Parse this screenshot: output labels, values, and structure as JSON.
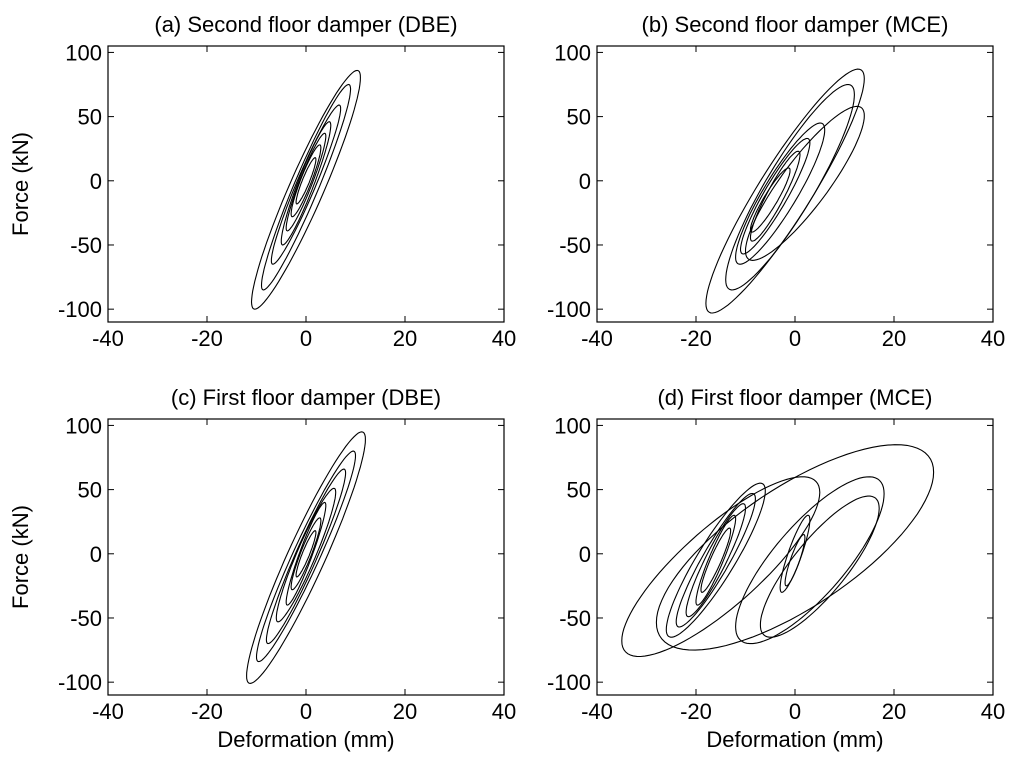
{
  "chart_data": [
    {
      "type": "line",
      "title": "(a) Second floor damper (DBE)",
      "xlabel": "",
      "ylabel": "Force (kN)",
      "xlim": [
        -40,
        40
      ],
      "ylim": [
        -110,
        105
      ],
      "xticks": [
        "-40",
        "-20",
        "0",
        "20",
        "40"
      ],
      "yticks": [
        "100",
        "50",
        "0",
        "-50",
        "-100"
      ],
      "grid": false,
      "series": [
        {
          "loops": [
            {
              "center": [
                0,
                -7
              ],
              "amp": [
                11,
                93
              ],
              "lag": 0.35
            },
            {
              "center": [
                0,
                -5
              ],
              "amp": [
                9,
                80
              ],
              "lag": 0.3
            },
            {
              "center": [
                0,
                -3
              ],
              "amp": [
                7,
                62
              ],
              "lag": 0.3
            },
            {
              "center": [
                0,
                -2
              ],
              "amp": [
                5,
                48
              ],
              "lag": 0.35
            },
            {
              "center": [
                0,
                -1
              ],
              "amp": [
                4,
                38
              ],
              "lag": 0.35
            },
            {
              "center": [
                0,
                0
              ],
              "amp": [
                3,
                28
              ],
              "lag": 0.4
            },
            {
              "center": [
                0,
                0
              ],
              "amp": [
                2,
                18
              ],
              "lag": 0.4
            }
          ]
        }
      ]
    },
    {
      "type": "line",
      "title": "(b) Second floor damper (MCE)",
      "xlabel": "",
      "ylabel": "",
      "xlim": [
        -40,
        40
      ],
      "ylim": [
        -110,
        105
      ],
      "xticks": [
        "-40",
        "-20",
        "0",
        "20",
        "40"
      ],
      "yticks": [
        "100",
        "50",
        "0",
        "-50",
        "-100"
      ],
      "grid": false,
      "series": [
        {
          "loops": [
            {
              "center": [
                -2,
                -8
              ],
              "amp": [
                16,
                95
              ],
              "lag": 0.4
            },
            {
              "center": [
                -1,
                -5
              ],
              "amp": [
                13,
                80
              ],
              "lag": 0.45
            },
            {
              "center": [
                2,
                -2
              ],
              "amp": [
                12,
                60
              ],
              "lag": 0.5
            },
            {
              "center": [
                -3,
                -10
              ],
              "amp": [
                9,
                55
              ],
              "lag": 0.45
            },
            {
              "center": [
                -4,
                -12
              ],
              "amp": [
                7,
                45
              ],
              "lag": 0.4
            },
            {
              "center": [
                -4,
                -12
              ],
              "amp": [
                5,
                35
              ],
              "lag": 0.4
            },
            {
              "center": [
                -5,
                -15
              ],
              "amp": [
                4,
                25
              ],
              "lag": 0.4
            }
          ]
        }
      ]
    },
    {
      "type": "line",
      "title": "(c) First floor damper (DBE)",
      "xlabel": "Deformation (mm)",
      "ylabel": "Force (kN)",
      "xlim": [
        -40,
        40
      ],
      "ylim": [
        -110,
        105
      ],
      "xticks": [
        "-40",
        "-20",
        "0",
        "20",
        "40"
      ],
      "yticks": [
        "100",
        "50",
        "0",
        "-50",
        "-100"
      ],
      "grid": false,
      "series": [
        {
          "loops": [
            {
              "center": [
                0,
                -3
              ],
              "amp": [
                12,
                98
              ],
              "lag": 0.35
            },
            {
              "center": [
                0,
                -2
              ],
              "amp": [
                10,
                82
              ],
              "lag": 0.3
            },
            {
              "center": [
                0,
                -2
              ],
              "amp": [
                8,
                68
              ],
              "lag": 0.3
            },
            {
              "center": [
                0,
                -1
              ],
              "amp": [
                6,
                52
              ],
              "lag": 0.35
            },
            {
              "center": [
                0,
                0
              ],
              "amp": [
                4,
                40
              ],
              "lag": 0.35
            },
            {
              "center": [
                0,
                0
              ],
              "amp": [
                3,
                28
              ],
              "lag": 0.4
            },
            {
              "center": [
                0,
                0
              ],
              "amp": [
                2,
                18
              ],
              "lag": 0.4
            }
          ]
        }
      ]
    },
    {
      "type": "line",
      "title": "(d) First floor damper (MCE)",
      "xlabel": "Deformation (mm)",
      "ylabel": "",
      "xlim": [
        -40,
        40
      ],
      "ylim": [
        -110,
        105
      ],
      "xticks": [
        "-40",
        "-20",
        "0",
        "20",
        "40"
      ],
      "yticks": [
        "100",
        "50",
        "0",
        "-50",
        "-100"
      ],
      "grid": false,
      "series": [
        {
          "loops": [
            {
              "center": [
                -15,
                -10
              ],
              "amp": [
                20,
                70
              ],
              "lag": 0.6
            },
            {
              "center": [
                -16,
                -5
              ],
              "amp": [
                10,
                60
              ],
              "lag": 0.45
            },
            {
              "center": [
                -16,
                -5
              ],
              "amp": [
                8,
                52
              ],
              "lag": 0.4
            },
            {
              "center": [
                -16,
                -5
              ],
              "amp": [
                6,
                44
              ],
              "lag": 0.4
            },
            {
              "center": [
                -16,
                -5
              ],
              "amp": [
                4,
                35
              ],
              "lag": 0.4
            },
            {
              "center": [
                -16,
                -5
              ],
              "amp": [
                3,
                25
              ],
              "lag": 0.4
            },
            {
              "center": [
                0,
                5
              ],
              "amp": [
                28,
                80
              ],
              "lag": 0.75
            },
            {
              "center": [
                3,
                -5
              ],
              "amp": [
                15,
                65
              ],
              "lag": 0.65
            },
            {
              "center": [
                5,
                -10
              ],
              "amp": [
                12,
                55
              ],
              "lag": 0.6
            },
            {
              "center": [
                0,
                0
              ],
              "amp": [
                3,
                30
              ],
              "lag": 0.5
            },
            {
              "center": [
                0,
                -5
              ],
              "amp": [
                2,
                20
              ],
              "lag": 0.5
            }
          ]
        }
      ]
    }
  ]
}
